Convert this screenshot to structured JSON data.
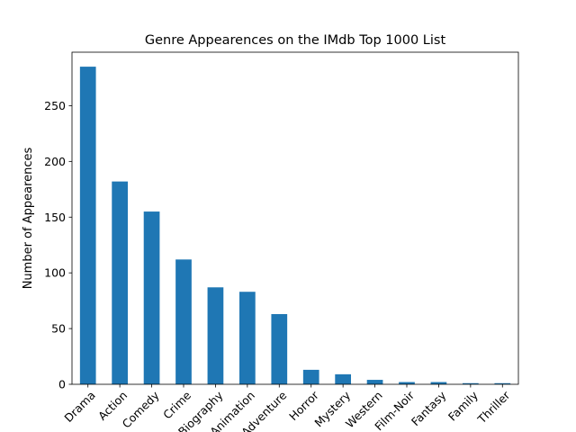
{
  "chart_data": {
    "type": "bar",
    "title": "Genre Appearences on the IMdb Top 1000 List",
    "xlabel": "",
    "ylabel": "Number of Appearences",
    "categories": [
      "Drama",
      "Action",
      "Comedy",
      "Crime",
      "Biography",
      "Animation",
      "Adventure",
      "Horror",
      "Mystery",
      "Western",
      "Film-Noir",
      "Fantasy",
      "Family",
      "Thriller"
    ],
    "values": [
      285,
      182,
      155,
      112,
      87,
      83,
      63,
      13,
      9,
      4,
      2,
      2,
      1,
      1
    ],
    "ylim": [
      0,
      298
    ],
    "yticks": [
      0,
      50,
      100,
      150,
      200,
      250
    ],
    "x_tick_rotation_deg": 45,
    "grid": false,
    "legend": "none",
    "bar_color": "#1f77b4"
  }
}
